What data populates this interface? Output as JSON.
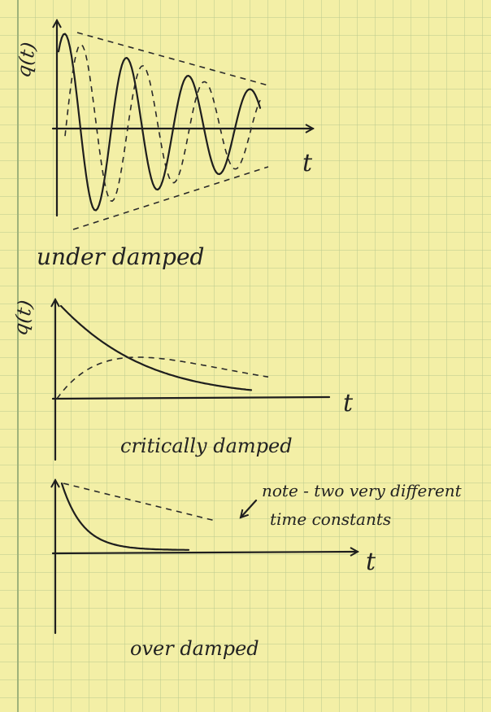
{
  "panels": [
    {
      "y_label": "q(t)",
      "x_label": "t",
      "caption": "under damped"
    },
    {
      "y_label": "q(t)",
      "x_label": "t",
      "caption": "critically damped"
    },
    {
      "y_label": "",
      "x_label": "t",
      "caption": "over damped",
      "note": [
        "note - two very different",
        "time constants"
      ]
    }
  ]
}
